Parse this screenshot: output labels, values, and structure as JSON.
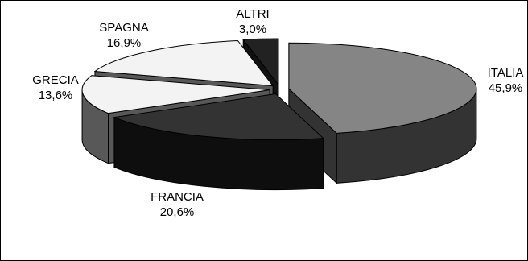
{
  "chart_data": {
    "type": "pie",
    "title": "",
    "categories": [
      "ITALIA",
      "FRANCIA",
      "GRECIA",
      "SPAGNA",
      "ALTRI"
    ],
    "values": [
      45.9,
      20.6,
      13.6,
      16.9,
      3.0
    ],
    "value_labels": [
      "45,9%",
      "20,6%",
      "13,6%",
      "16,9%",
      "3,0%"
    ],
    "colors": {
      "top": [
        "#858585",
        "#333333",
        "#f3f3f3",
        "#f3f3f3",
        "#222222"
      ],
      "side": [
        "#333333",
        "#0e0e0e",
        "#585858",
        "#585858",
        "#111111"
      ]
    },
    "style": "3d-exploded-pie",
    "legend": "none"
  }
}
